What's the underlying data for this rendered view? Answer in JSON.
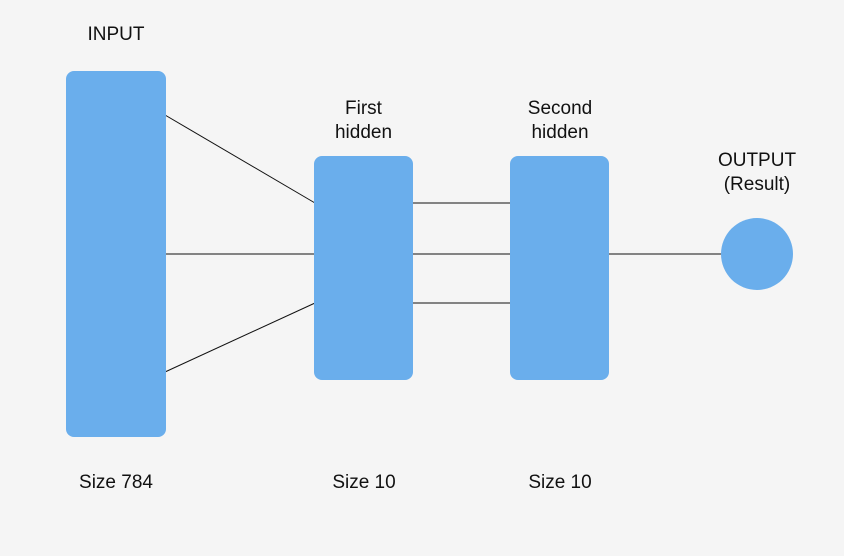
{
  "colors": {
    "background": "#f5f5f5",
    "layer_fill": "#6aaeec",
    "connector": "#111111",
    "text": "#111111"
  },
  "layers": {
    "input": {
      "title": "INPUT",
      "size_label": "Size 784",
      "size": 784
    },
    "hidden1": {
      "title_line1": "First",
      "title_line2": "hidden",
      "size_label": "Size 10",
      "size": 10
    },
    "hidden2": {
      "title_line1": "Second",
      "title_line2": "hidden",
      "size_label": "Size 10",
      "size": 10
    },
    "output": {
      "title_line1": "OUTPUT",
      "title_line2": "(Result)"
    }
  }
}
